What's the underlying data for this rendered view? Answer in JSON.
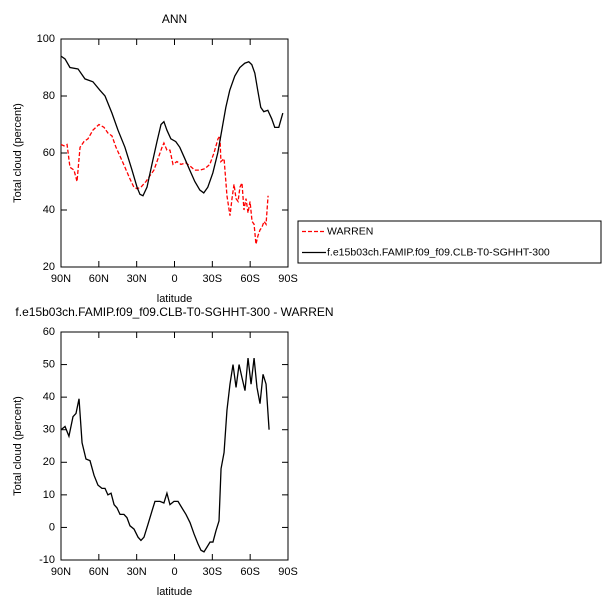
{
  "chart_data": [
    {
      "type": "line",
      "title": "ANN",
      "xlabel": "latitude",
      "ylabel": "Total cloud (percent)",
      "xlim": [
        90,
        -90
      ],
      "ylim": [
        20,
        100
      ],
      "xticks": [
        {
          "value": 90,
          "label": "90N"
        },
        {
          "value": 60,
          "label": "60N"
        },
        {
          "value": 30,
          "label": "30N"
        },
        0,
        {
          "value": -30,
          "label": "30S"
        },
        {
          "value": -60,
          "label": "60S"
        },
        {
          "value": -90,
          "label": "90S"
        }
      ],
      "yticks": [
        20,
        40,
        60,
        80,
        100
      ],
      "legend": "right",
      "series": [
        {
          "name": "WARREN",
          "color": "#ff0000",
          "dash": true,
          "x": [
            90,
            87.6,
            85.2,
            82.9,
            79.7,
            77.3,
            74.9,
            71.8,
            68.6,
            64.7,
            59.9,
            55.9,
            52.8,
            49.6,
            46.4,
            43.3,
            39.3,
            35.4,
            32.2,
            29.8,
            26.6,
            22.6,
            19.5,
            16.3,
            13.1,
            9.9,
            8.4,
            6,
            3.6,
            1.2,
            -1.9,
            -5.1,
            -9,
            -12.2,
            -16.1,
            -20.1,
            -24.1,
            -28,
            -31.3,
            -34.5,
            -36,
            -36.8,
            -39.3,
            -41.6,
            -44,
            -45.6,
            -47.2,
            -48.8,
            -50.4,
            -51.9,
            -53.5,
            -55.1,
            -56.7,
            -58.3,
            -59.9,
            -61.5,
            -63.1,
            -64.6,
            -66.2,
            -67.8,
            -69.4,
            -71,
            -72.6,
            -74.2
          ],
          "values": [
            63,
            62.5,
            63,
            55,
            54,
            50,
            62,
            64,
            65,
            68,
            70,
            69,
            67,
            66,
            62,
            59,
            55,
            51,
            48,
            47.5,
            48,
            50,
            52,
            54,
            58,
            62,
            63.5,
            61,
            61,
            56,
            57,
            56,
            56.5,
            55.5,
            54,
            54,
            54.5,
            56,
            60,
            65,
            66,
            57,
            58,
            45,
            38,
            44,
            49,
            44,
            43,
            48,
            49.5,
            40,
            44,
            39,
            43,
            36,
            35,
            28,
            31,
            33,
            34,
            36,
            35,
            45
          ]
        },
        {
          "name": "f.e15b03ch.FAMIP.f09_f09.CLB-T0-SGHHT-300",
          "color": "#000000",
          "x": [
            90,
            86.8,
            82.9,
            76.5,
            71,
            64.7,
            59.1,
            55.1,
            49.6,
            44.8,
            39.3,
            33.7,
            29.7,
            27.4,
            25,
            21.8,
            17.9,
            13.9,
            10.7,
            8.4,
            6,
            2.9,
            -1,
            -4.2,
            -8.2,
            -12.1,
            -16.1,
            -20.1,
            -23.2,
            -26.4,
            -30.4,
            -34.3,
            -37.5,
            -40.7,
            -43.8,
            -47.8,
            -51.8,
            -55.7,
            -58.9,
            -61.3,
            -63.7,
            -66,
            -68.4,
            -70.8,
            -74,
            -77.1,
            -79.5,
            -82.7,
            -85.9
          ],
          "values": [
            94,
            93,
            90,
            89.5,
            86,
            85,
            82,
            80,
            74,
            68,
            62,
            54,
            48,
            45.5,
            45,
            48,
            56,
            64,
            70,
            71,
            68,
            65,
            64,
            62,
            58,
            54,
            50,
            47,
            46,
            48,
            53,
            60,
            68,
            76,
            82,
            87,
            90,
            91.5,
            92,
            91,
            88,
            82,
            76,
            74.5,
            75,
            72,
            69,
            69,
            74
          ]
        }
      ]
    },
    {
      "type": "line",
      "title": "f.e15b03ch.FAMIP.f09_f09.CLB-T0-SGHHT-300 - WARREN",
      "xlabel": "latitude",
      "ylabel": "Total cloud (percent)",
      "xlim": [
        90,
        -90
      ],
      "ylim": [
        -10,
        60
      ],
      "xticks": [
        {
          "value": 90,
          "label": "90N"
        },
        {
          "value": 60,
          "label": "60N"
        },
        {
          "value": 30,
          "label": "30N"
        },
        0,
        {
          "value": -30,
          "label": "30S"
        },
        {
          "value": -60,
          "label": "60S"
        },
        {
          "value": -90,
          "label": "90S"
        }
      ],
      "yticks": [
        -10,
        0,
        10,
        20,
        30,
        40,
        50,
        60
      ],
      "series": [
        {
          "color": "#000000",
          "x": [
            90,
            86.8,
            83.7,
            80.5,
            78.1,
            75.7,
            73.3,
            70.2,
            67,
            63.8,
            60.7,
            57.5,
            55.1,
            52.8,
            50.3,
            47.9,
            45.6,
            43.2,
            40.1,
            37.7,
            35.3,
            32.1,
            28.9,
            26.6,
            24.2,
            21,
            17.9,
            15.5,
            11.5,
            8.4,
            6,
            3.6,
            0.4,
            -2.8,
            -5.9,
            -9.1,
            -12.3,
            -15.5,
            -18.6,
            -21,
            -23.4,
            -25.8,
            -28.2,
            -30.5,
            -32.9,
            -35.3,
            -36.9,
            -39.3,
            -41.6,
            -44,
            -46.4,
            -48.8,
            -51.2,
            -53.5,
            -55.9,
            -58.3,
            -60.7,
            -63.1,
            -65.4,
            -67.8,
            -70.2,
            -72.6,
            -75
          ],
          "values": [
            30,
            31,
            28,
            34,
            35,
            39.5,
            26,
            21,
            20.5,
            16,
            13,
            12,
            12,
            10,
            10.5,
            7,
            6,
            4,
            4,
            3,
            0.5,
            -0.5,
            -3,
            -4,
            -3,
            1,
            5,
            8,
            8,
            7.5,
            10.5,
            7,
            8,
            8,
            6,
            4,
            1.5,
            -2,
            -5,
            -7,
            -7.5,
            -6,
            -4.5,
            -4.5,
            -1,
            2,
            18,
            23,
            36,
            44,
            50,
            43,
            50,
            46,
            42,
            52,
            44,
            52,
            43,
            38,
            47,
            44,
            30
          ]
        }
      ]
    }
  ]
}
